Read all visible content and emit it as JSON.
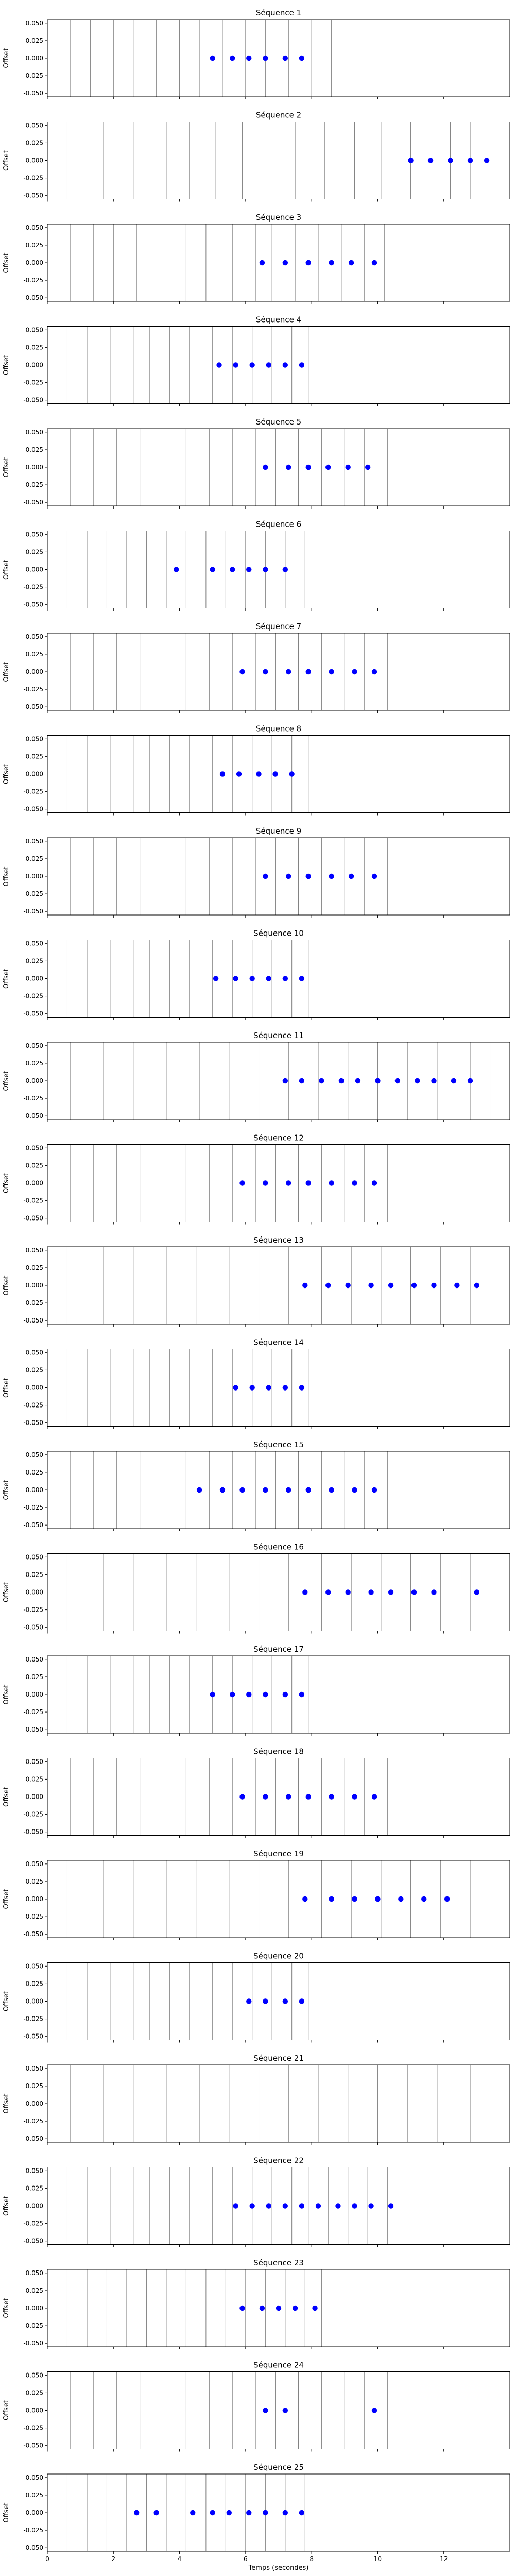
{
  "chart_data": {
    "type": "scatter",
    "xlabel": "Temps (secondes)",
    "ylabel": "Offset",
    "xlim": [
      0,
      14
    ],
    "ylim": [
      -0.055,
      0.055
    ],
    "xticks": [
      0,
      2,
      4,
      6,
      8,
      10,
      12
    ],
    "xtick_labels": [
      "0",
      "2",
      "4",
      "6",
      "8",
      "10",
      "12"
    ],
    "yticks": [
      -0.05,
      -0.025,
      0.0,
      0.025,
      0.05
    ],
    "ytick_labels": [
      "-0.050",
      "-0.025",
      "0.000",
      "0.025",
      "0.050"
    ],
    "point_color": "#0000ff",
    "vline_color": "#808080",
    "grid": false,
    "panels": [
      {
        "title": "Séquence 1",
        "vlines": [
          0.7,
          1.3,
          2.0,
          2.6,
          3.3,
          4.0,
          4.6,
          5.3,
          6.0,
          6.6,
          7.3,
          8.0,
          8.6
        ],
        "points": [
          5.0,
          5.6,
          6.1,
          6.6,
          7.2,
          7.7
        ],
        "y": 0
      },
      {
        "title": "Séquence 2",
        "vlines": [
          0.6,
          1.7,
          2.6,
          3.6,
          4.3,
          5.1,
          5.9,
          7.5,
          8.4,
          9.3,
          10.1,
          11.0,
          12.2,
          12.8
        ],
        "points": [
          11.0,
          11.6,
          12.2,
          12.8,
          13.3
        ],
        "y": 0
      },
      {
        "title": "Séquence 3",
        "vlines": [
          0.7,
          1.4,
          2.0,
          2.7,
          3.5,
          4.2,
          4.8,
          5.6,
          6.3,
          6.8,
          7.5,
          8.2,
          8.9,
          9.6,
          10.2
        ],
        "points": [
          6.5,
          7.2,
          7.9,
          8.6,
          9.2,
          9.9
        ],
        "y": 0
      },
      {
        "title": "Séquence 4",
        "vlines": [
          0.6,
          1.2,
          1.9,
          2.6,
          3.1,
          3.7,
          4.3,
          5.0,
          5.6,
          6.2,
          6.8,
          7.4,
          7.9
        ],
        "points": [
          5.2,
          5.7,
          6.2,
          6.7,
          7.2,
          7.7
        ],
        "y": 0
      },
      {
        "title": "Séquence 5",
        "vlines": [
          0.7,
          1.4,
          2.1,
          2.8,
          3.5,
          4.2,
          4.9,
          5.6,
          6.3,
          6.9,
          7.6,
          8.3,
          9.0,
          9.6,
          10.3
        ],
        "points": [
          6.6,
          7.3,
          7.9,
          8.5,
          9.1,
          9.7
        ],
        "y": 0
      },
      {
        "title": "Séquence 6",
        "vlines": [
          0.6,
          1.2,
          1.8,
          2.4,
          3.0,
          3.6,
          4.2,
          4.8,
          5.4,
          6.0,
          6.6,
          7.2,
          7.8
        ],
        "points": [
          3.9,
          5.0,
          5.6,
          6.1,
          6.6,
          7.2
        ],
        "y": 0
      },
      {
        "title": "Séquence 7",
        "vlines": [
          0.7,
          1.4,
          2.1,
          2.8,
          3.5,
          4.2,
          4.9,
          5.6,
          6.3,
          6.9,
          7.6,
          8.3,
          9.0,
          9.6,
          10.3
        ],
        "points": [
          5.9,
          6.6,
          7.3,
          7.9,
          8.6,
          9.3,
          9.9
        ],
        "y": 0
      },
      {
        "title": "Séquence 8",
        "vlines": [
          0.6,
          1.2,
          1.9,
          2.6,
          3.1,
          3.7,
          4.3,
          5.0,
          5.6,
          6.2,
          6.8,
          7.4,
          7.9
        ],
        "points": [
          5.3,
          5.8,
          6.4,
          6.9,
          7.4
        ],
        "y": 0
      },
      {
        "title": "Séquence 9",
        "vlines": [
          0.7,
          1.4,
          2.1,
          2.8,
          3.5,
          4.2,
          4.9,
          5.6,
          6.3,
          6.9,
          7.6,
          8.3,
          9.0,
          9.6,
          10.3
        ],
        "points": [
          6.6,
          7.3,
          7.9,
          8.6,
          9.2,
          9.9
        ],
        "y": 0
      },
      {
        "title": "Séquence 10",
        "vlines": [
          0.6,
          1.2,
          1.9,
          2.6,
          3.1,
          3.7,
          4.3,
          5.0,
          5.6,
          6.2,
          6.8,
          7.4,
          7.9
        ],
        "points": [
          5.1,
          5.7,
          6.2,
          6.7,
          7.2,
          7.7
        ],
        "y": 0
      },
      {
        "title": "Séquence 11",
        "vlines": [
          0.7,
          1.7,
          2.6,
          3.6,
          4.6,
          5.5,
          6.4,
          7.3,
          8.2,
          9.1,
          10.0,
          10.9,
          11.8,
          12.8,
          13.4
        ],
        "points": [
          7.2,
          7.7,
          8.3,
          8.9,
          9.4,
          10.0,
          10.6,
          11.2,
          11.7,
          12.3,
          12.8
        ],
        "y": 0
      },
      {
        "title": "Séquence 12",
        "vlines": [
          0.7,
          1.4,
          2.1,
          2.8,
          3.5,
          4.2,
          4.9,
          5.6,
          6.3,
          6.9,
          7.6,
          8.3,
          9.0,
          9.6,
          10.3
        ],
        "points": [
          5.9,
          6.6,
          7.3,
          7.9,
          8.6,
          9.3,
          9.9
        ],
        "y": 0
      },
      {
        "title": "Séquence 13",
        "vlines": [
          0.6,
          1.7,
          2.6,
          3.6,
          4.5,
          5.5,
          6.4,
          7.3,
          8.3,
          9.2,
          10.1,
          11.0,
          11.9,
          12.8
        ],
        "points": [
          7.8,
          8.5,
          9.1,
          9.8,
          10.4,
          11.1,
          11.7,
          12.4,
          13.0
        ],
        "y": 0
      },
      {
        "title": "Séquence 14",
        "vlines": [
          0.6,
          1.2,
          1.9,
          2.6,
          3.1,
          3.7,
          4.3,
          5.0,
          5.6,
          6.2,
          6.8,
          7.4,
          7.9
        ],
        "points": [
          5.7,
          6.2,
          6.7,
          7.2,
          7.7
        ],
        "y": 0
      },
      {
        "title": "Séquence 15",
        "vlines": [
          0.7,
          1.4,
          2.1,
          2.8,
          3.5,
          4.2,
          4.9,
          5.6,
          6.3,
          6.9,
          7.6,
          8.3,
          9.0,
          9.6,
          10.3
        ],
        "points": [
          4.6,
          5.3,
          5.9,
          6.6,
          7.3,
          7.9,
          8.6,
          9.3,
          9.9
        ],
        "y": 0
      },
      {
        "title": "Séquence 16",
        "vlines": [
          0.6,
          1.7,
          2.6,
          3.6,
          4.5,
          5.5,
          6.4,
          7.3,
          8.3,
          9.2,
          10.1,
          11.0,
          11.9,
          12.8
        ],
        "points": [
          7.8,
          8.5,
          9.1,
          9.8,
          10.4,
          11.1,
          11.7,
          13.0
        ],
        "y": 0
      },
      {
        "title": "Séquence 17",
        "vlines": [
          0.6,
          1.2,
          1.9,
          2.6,
          3.1,
          3.7,
          4.3,
          5.0,
          5.6,
          6.2,
          6.8,
          7.4,
          7.9
        ],
        "points": [
          5.0,
          5.6,
          6.1,
          6.6,
          7.2,
          7.7
        ],
        "y": 0
      },
      {
        "title": "Séquence 18",
        "vlines": [
          0.7,
          1.4,
          2.1,
          2.8,
          3.5,
          4.2,
          4.9,
          5.6,
          6.3,
          6.9,
          7.6,
          8.3,
          9.0,
          9.6,
          10.3
        ],
        "points": [
          5.9,
          6.6,
          7.3,
          7.9,
          8.6,
          9.3,
          9.9
        ],
        "y": 0
      },
      {
        "title": "Séquence 19",
        "vlines": [
          0.6,
          1.7,
          2.6,
          3.6,
          4.5,
          5.5,
          6.4,
          7.3,
          8.3,
          9.2,
          10.1,
          11.0,
          11.9,
          12.8
        ],
        "points": [
          7.8,
          8.6,
          9.3,
          10.0,
          10.7,
          11.4,
          12.1
        ],
        "y": 0
      },
      {
        "title": "Séquence 20",
        "vlines": [
          0.6,
          1.2,
          1.9,
          2.6,
          3.1,
          3.7,
          4.3,
          5.0,
          5.6,
          6.2,
          6.8,
          7.4,
          7.9
        ],
        "points": [
          6.1,
          6.6,
          7.2,
          7.7
        ],
        "y": 0
      },
      {
        "title": "Séquence 21",
        "vlines": [
          0.7,
          1.7,
          2.6,
          3.6,
          4.6,
          5.5,
          6.4,
          7.3,
          8.2,
          9.1,
          10.0,
          10.9,
          11.8,
          12.8
        ],
        "points": [],
        "y": 0
      },
      {
        "title": "Séquence 22",
        "vlines": [
          0.6,
          1.2,
          1.9,
          2.6,
          3.1,
          3.7,
          4.3,
          5.0,
          5.6,
          6.2,
          6.8,
          7.4,
          7.9,
          8.5,
          9.1,
          9.7,
          10.3
        ],
        "points": [
          5.7,
          6.2,
          6.7,
          7.2,
          7.7,
          8.2,
          8.8,
          9.3,
          9.8,
          10.4
        ],
        "y": 0
      },
      {
        "title": "Séquence 23",
        "vlines": [
          0.6,
          1.2,
          1.8,
          2.4,
          3.0,
          3.6,
          4.2,
          4.8,
          5.4,
          6.0,
          6.6,
          7.2,
          7.8,
          8.3
        ],
        "points": [
          5.9,
          6.5,
          7.0,
          7.5,
          8.1
        ],
        "y": 0
      },
      {
        "title": "Séquence 24",
        "vlines": [
          0.7,
          1.4,
          2.1,
          2.8,
          3.5,
          4.2,
          4.9,
          5.6,
          6.3,
          6.9,
          7.6,
          8.3,
          9.0,
          9.6,
          10.3
        ],
        "points": [
          6.6,
          7.2,
          9.9
        ],
        "y": 0
      },
      {
        "title": "Séquence 25",
        "vlines": [
          0.6,
          1.2,
          1.8,
          2.4,
          3.0,
          3.6,
          4.2,
          4.8,
          5.4,
          6.0,
          6.6,
          7.2,
          7.8
        ],
        "points": [
          2.7,
          3.3,
          4.4,
          5.0,
          5.5,
          6.1,
          6.6,
          7.2,
          7.7
        ],
        "y": 0
      }
    ]
  }
}
